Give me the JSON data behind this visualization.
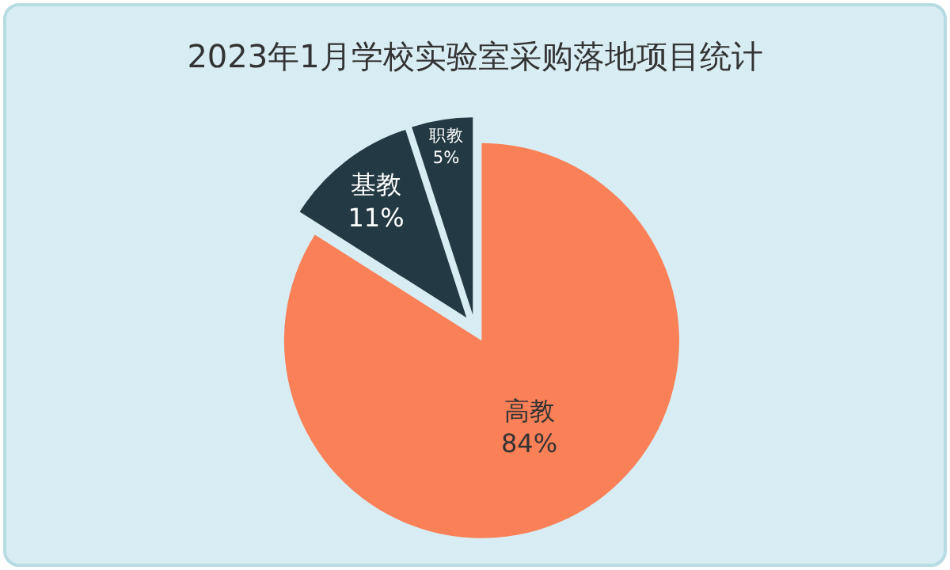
{
  "chart_data": {
    "type": "pie",
    "title": "2023年1月学校实验室采购落地项目统计",
    "categories": [
      "高教",
      "基教",
      "职教"
    ],
    "values": [
      84,
      11,
      5
    ],
    "colors": [
      "#fa8058",
      "#233a44",
      "#233a44"
    ],
    "value_labels": [
      "84%",
      "11%",
      "5%"
    ],
    "legend": false
  }
}
